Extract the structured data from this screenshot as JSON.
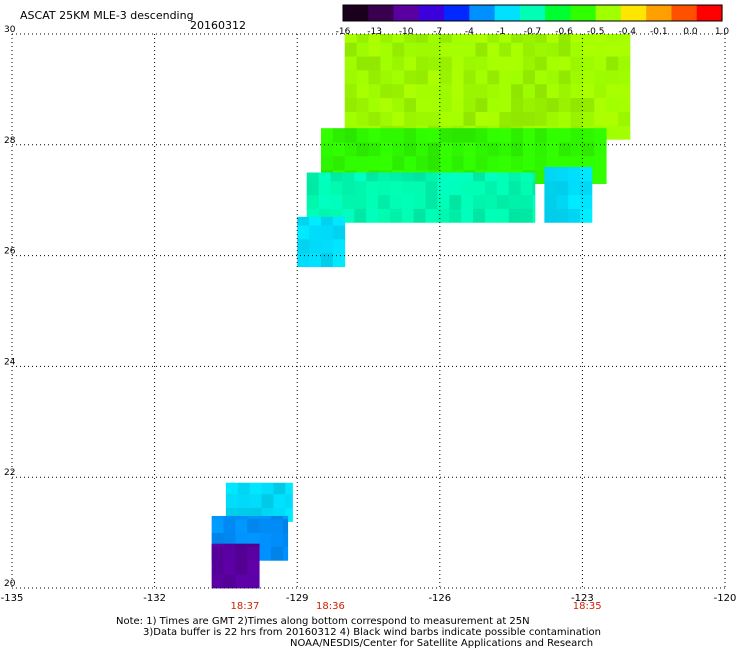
{
  "header": {
    "title": "ASCAT 25KM MLE-3 descending",
    "date": "20160312"
  },
  "colorbar": {
    "labels": [
      "-16",
      "-13",
      "-10",
      "-7",
      "-4",
      "-1",
      "-0.7",
      "-0.6",
      "-0.5",
      "-0.4",
      "-0.1",
      "0.0",
      "1.0"
    ],
    "colors": [
      "#1a001a",
      "#3a0050",
      "#5a00a0",
      "#3c00dc",
      "#0028ff",
      "#0090ff",
      "#00e0ff",
      "#00ffb4",
      "#00ff30",
      "#30ff00",
      "#a0ff00",
      "#ffe600",
      "#ffa000",
      "#ff5000",
      "#ff0000"
    ]
  },
  "chart_data": {
    "type": "heatmap",
    "title": "ASCAT 25KM MLE-3 descending",
    "subtitle": "20160312",
    "xlim": [
      -135,
      -120
    ],
    "ylim": [
      20,
      30
    ],
    "x_ticks": [
      "-135",
      "-132",
      "-129",
      "-126",
      "-123",
      "-120"
    ],
    "y_ticks": [
      "30",
      "28",
      "26",
      "24",
      "22",
      "20"
    ],
    "grid": true,
    "time_labels": [
      {
        "lon": -130.1,
        "text": "18:37"
      },
      {
        "lon": -128.3,
        "text": "18:36"
      },
      {
        "lon": -122.9,
        "text": "18:35"
      }
    ],
    "time_color": "#cc2200",
    "regions": [
      {
        "lon": [
          -128.0,
          -122.0
        ],
        "lat": [
          28.1,
          30.0
        ],
        "mle": -0.5
      },
      {
        "lon": [
          -128.5,
          -122.5
        ],
        "lat": [
          27.3,
          28.3
        ],
        "mle": -0.55
      },
      {
        "lon": [
          -128.8,
          -124.0
        ],
        "lat": [
          26.6,
          27.5
        ],
        "mle": -0.8
      },
      {
        "lon": [
          -123.8,
          -122.8
        ],
        "lat": [
          26.6,
          27.6
        ],
        "mle": -1.5
      },
      {
        "lon": [
          -129.0,
          -128.0
        ],
        "lat": [
          25.8,
          26.7
        ],
        "mle": -1.5
      },
      {
        "lon": [
          -130.5,
          -129.1
        ],
        "lat": [
          21.2,
          21.9
        ],
        "mle": -2
      },
      {
        "lon": [
          -130.8,
          -129.2
        ],
        "lat": [
          20.5,
          21.3
        ],
        "mle": -3
      },
      {
        "lon": [
          -130.8,
          -129.8
        ],
        "lat": [
          20.0,
          20.8
        ],
        "mle": -12
      }
    ]
  },
  "footer": {
    "line1": "Note: 1) Times are GMT 2)Times along bottom correspond to measurement at 25N",
    "line2": "3)Data buffer is 22 hrs from 20160312 4) Black wind barbs indicate possible contamination",
    "line3": "NOAA/NESDIS/Center for Satellite Applications and Research"
  }
}
